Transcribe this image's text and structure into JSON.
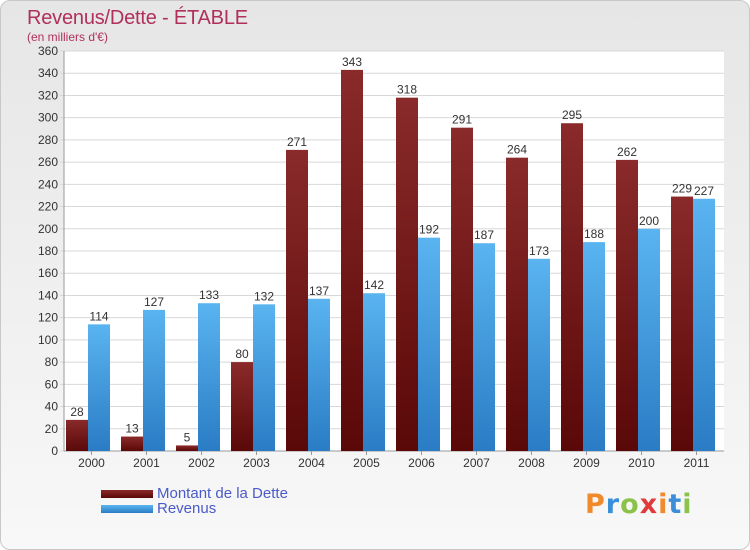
{
  "chart_data": {
    "type": "bar",
    "title": "Revenus/Dette - ÉTABLE",
    "subtitle": "(en milliers d'€)",
    "categories": [
      "2000",
      "2001",
      "2002",
      "2003",
      "2004",
      "2005",
      "2006",
      "2007",
      "2008",
      "2009",
      "2010",
      "2011"
    ],
    "series": [
      {
        "name": "Montant de la Dette",
        "values": [
          28,
          13,
          5,
          80,
          271,
          343,
          318,
          291,
          264,
          295,
          262,
          229
        ],
        "color": "#7a1c1c"
      },
      {
        "name": "Revenus",
        "values": [
          114,
          127,
          133,
          132,
          137,
          142,
          192,
          187,
          173,
          188,
          200,
          227
        ],
        "color": "#4aa3e6"
      }
    ],
    "ylim": [
      0,
      360
    ],
    "ytick_step": 20,
    "grid": true,
    "legend_position": "bottom-left"
  },
  "logo": {
    "text": "Proxiti",
    "colors": [
      "#f08a2a",
      "#3a8fd8",
      "#8ac24a",
      "#e03a3a",
      "#f08a2a",
      "#3a8fd8",
      "#8ac24a"
    ]
  }
}
